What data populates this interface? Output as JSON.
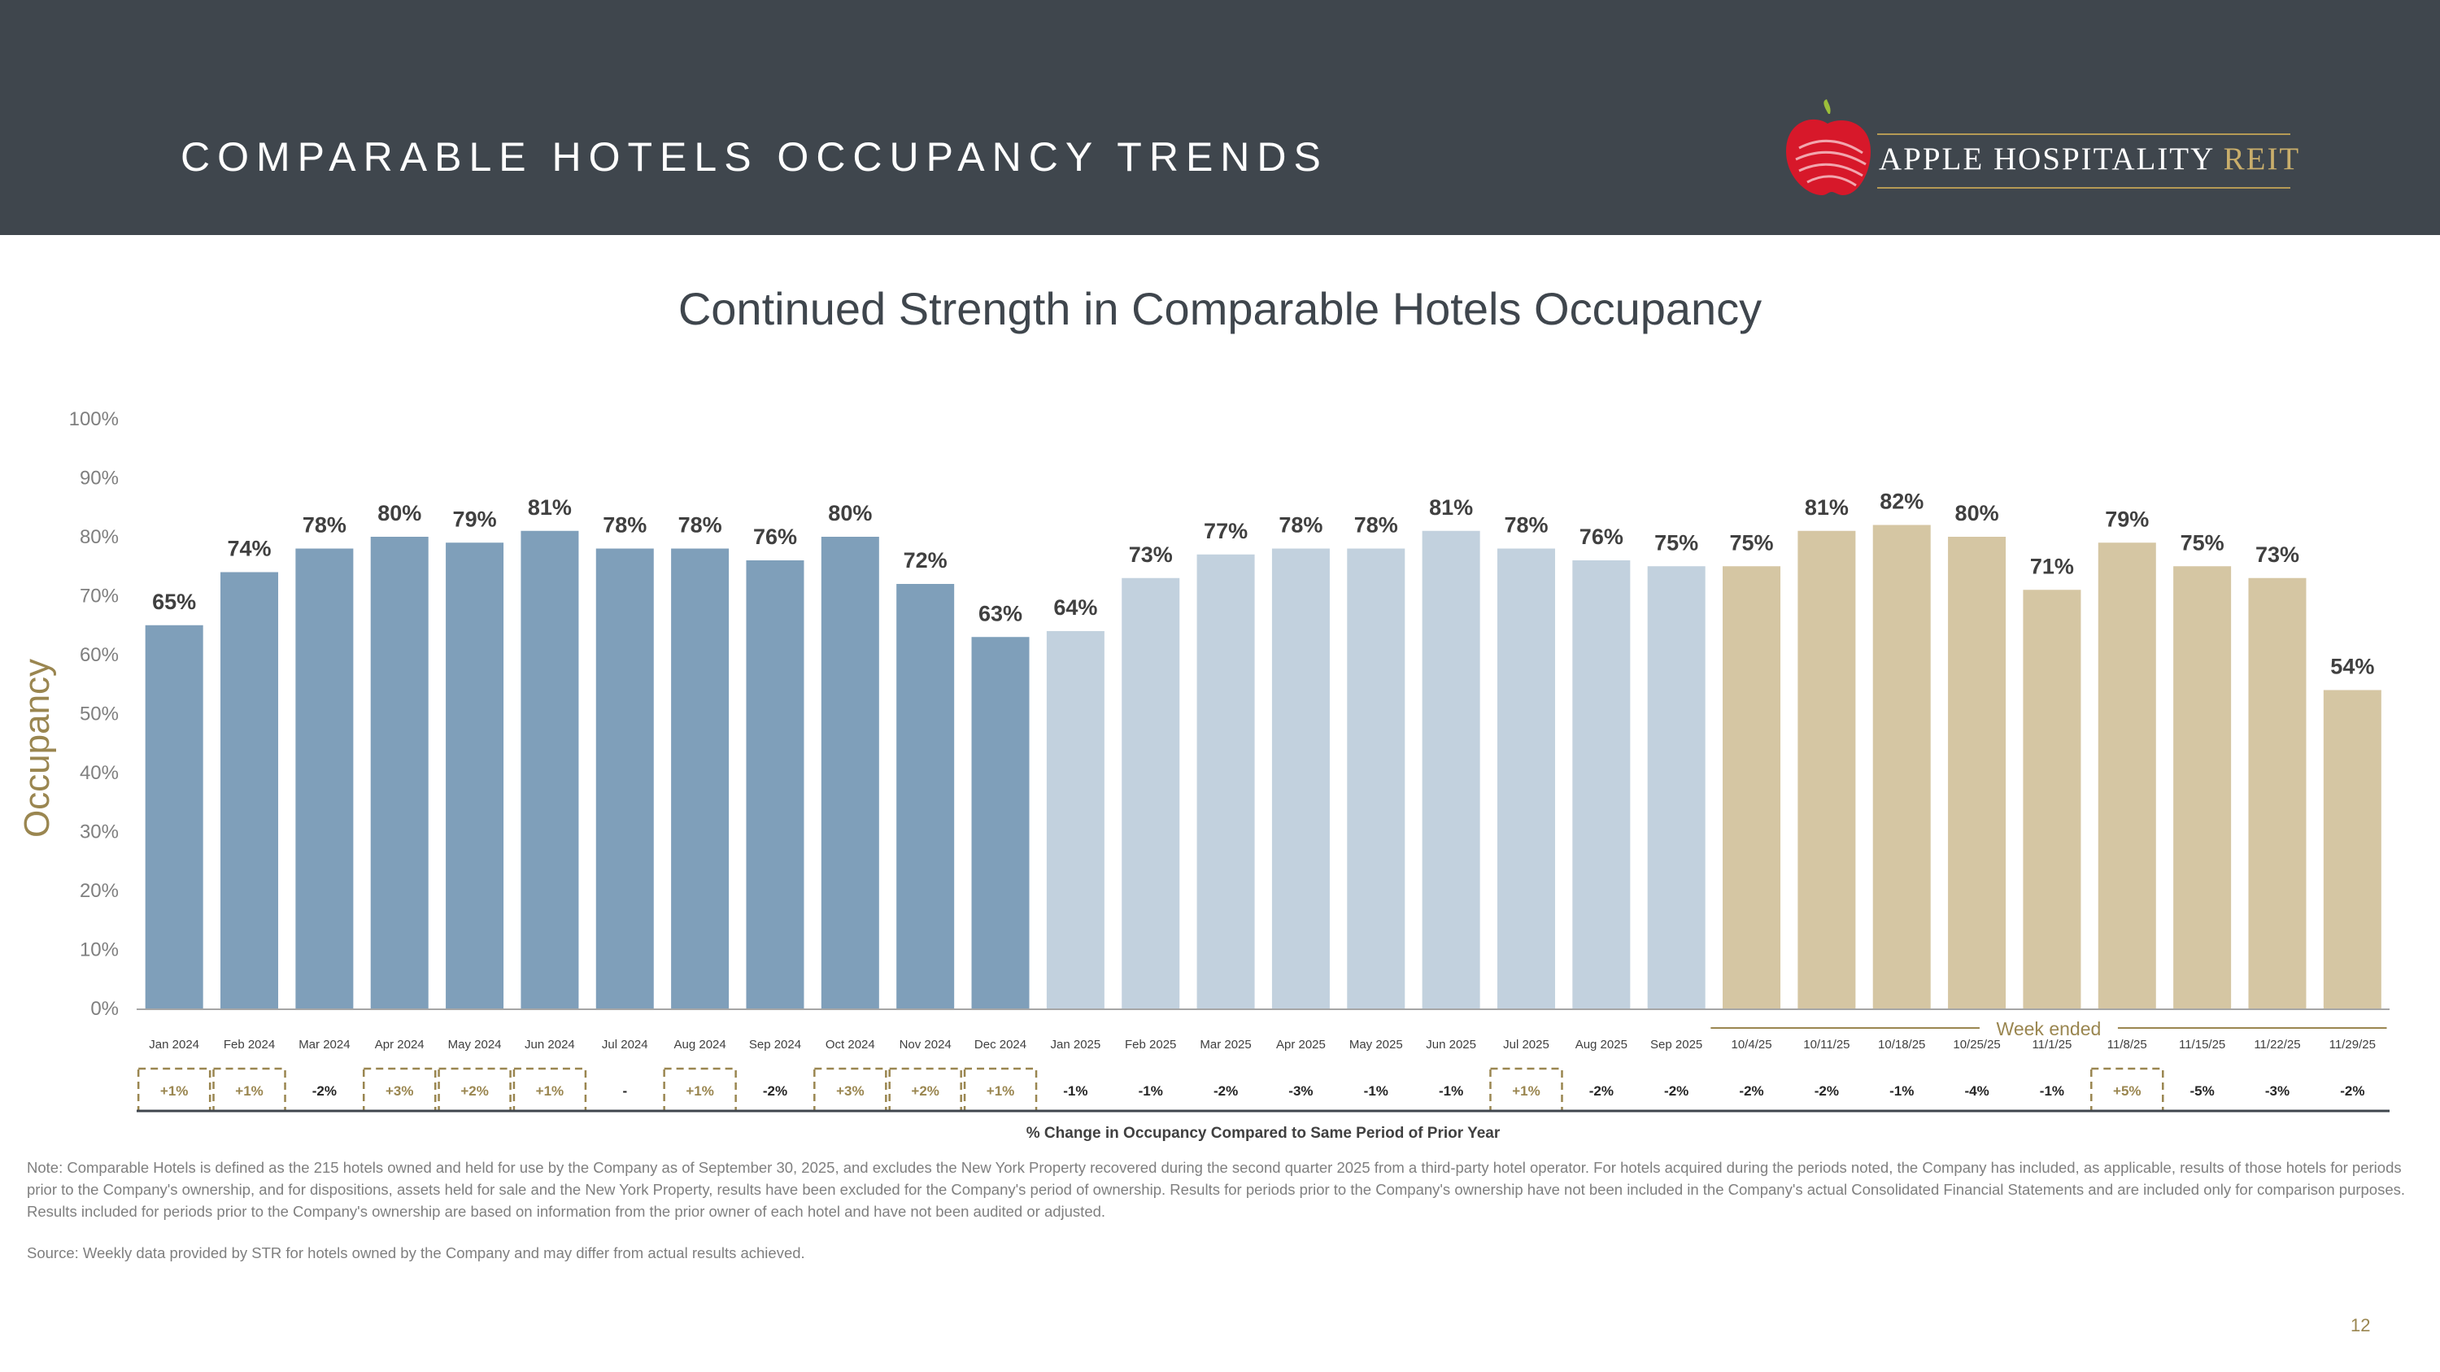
{
  "header": {
    "title": "COMPARABLE HOTELS OCCUPANCY TRENDS"
  },
  "logo": {
    "name_main": "APPLE HOSPITALITY",
    "name_accent": "REIT"
  },
  "colors": {
    "header_bg": "#3f464d",
    "bar_2024": "#7f9fba",
    "bar_2025": "#c2d1de",
    "bar_weekly": "#d5c6a3",
    "gold": "#9a8650"
  },
  "chart_data": {
    "type": "bar",
    "title": "Continued Strength in Comparable Hotels Occupancy",
    "ylabel": "Occupancy",
    "xlabel": "% Change in Occupancy Compared to Same Period of Prior Year",
    "ylim": [
      0,
      100
    ],
    "yticks": [
      "0%",
      "10%",
      "20%",
      "30%",
      "40%",
      "50%",
      "60%",
      "70%",
      "80%",
      "90%",
      "100%"
    ],
    "week_group_label": "Week ended",
    "categories": [
      "Jan 2024",
      "Feb 2024",
      "Mar 2024",
      "Apr 2024",
      "May 2024",
      "Jun 2024",
      "Jul 2024",
      "Aug 2024",
      "Sep 2024",
      "Oct 2024",
      "Nov 2024",
      "Dec 2024",
      "Jan 2025",
      "Feb 2025",
      "Mar 2025",
      "Apr 2025",
      "May 2025",
      "Jun 2025",
      "Jul 2025",
      "Aug 2025",
      "Sep 2025",
      "10/4/25",
      "10/11/25",
      "10/18/25",
      "10/25/25",
      "11/1/25",
      "11/8/25",
      "11/15/25",
      "11/22/25",
      "11/29/25"
    ],
    "values": [
      65,
      74,
      78,
      80,
      79,
      81,
      78,
      78,
      76,
      80,
      72,
      63,
      64,
      73,
      77,
      78,
      78,
      81,
      78,
      76,
      75,
      75,
      81,
      82,
      80,
      71,
      79,
      75,
      73,
      54
    ],
    "value_labels": [
      "65%",
      "74%",
      "78%",
      "80%",
      "79%",
      "81%",
      "78%",
      "78%",
      "76%",
      "80%",
      "72%",
      "63%",
      "64%",
      "73%",
      "77%",
      "78%",
      "78%",
      "81%",
      "78%",
      "76%",
      "75%",
      "75%",
      "81%",
      "82%",
      "80%",
      "71%",
      "79%",
      "75%",
      "73%",
      "54%"
    ],
    "groups": [
      "2024",
      "2024",
      "2024",
      "2024",
      "2024",
      "2024",
      "2024",
      "2024",
      "2024",
      "2024",
      "2024",
      "2024",
      "2025",
      "2025",
      "2025",
      "2025",
      "2025",
      "2025",
      "2025",
      "2025",
      "2025",
      "week",
      "week",
      "week",
      "week",
      "week",
      "week",
      "week",
      "week",
      "week"
    ],
    "pct_change": [
      "+1%",
      "+1%",
      "-2%",
      "+3%",
      "+2%",
      "+1%",
      "-",
      "+1%",
      "-2%",
      "+3%",
      "+2%",
      "+1%",
      "-1%",
      "-1%",
      "-2%",
      "-3%",
      "-1%",
      "-1%",
      "+1%",
      "-2%",
      "-2%",
      "-2%",
      "-2%",
      "-1%",
      "-4%",
      "-1%",
      "+5%",
      "-5%",
      "-3%",
      "-2%"
    ],
    "positive_change": [
      true,
      true,
      false,
      true,
      true,
      true,
      false,
      true,
      false,
      true,
      true,
      true,
      false,
      false,
      false,
      false,
      false,
      false,
      true,
      false,
      false,
      false,
      false,
      false,
      false,
      false,
      true,
      false,
      false,
      false
    ]
  },
  "footnote": "Note: Comparable Hotels is defined as the 215 hotels owned and held for use by the Company as of September 30, 2025, and excludes the New York Property recovered during the second quarter 2025 from a third-party hotel operator. For hotels acquired during the periods noted, the Company has included, as applicable, results of those hotels for periods prior to the Company's ownership, and for dispositions, assets held for sale and the New York Property, results have been excluded for the Company's period of ownership. Results for periods prior to the Company's ownership have not been included in the Company's actual Consolidated Financial Statements and are included only for comparison purposes. Results included for periods prior to the Company's ownership are based on information from the prior owner of each hotel and have not been audited or adjusted.",
  "source": "Source:  Weekly data provided by STR for hotels owned by the Company and may differ from actual results achieved.",
  "page_number": "12"
}
